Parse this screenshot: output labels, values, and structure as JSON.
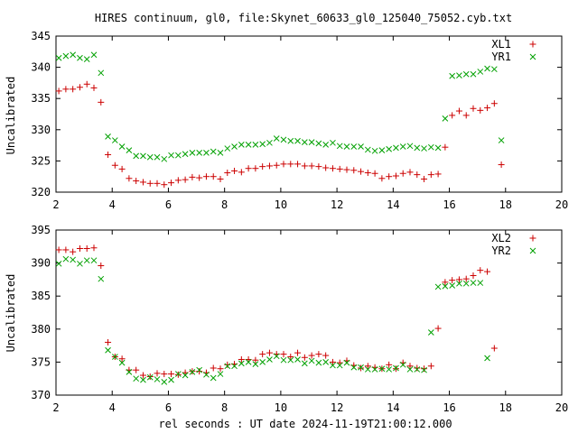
{
  "title": "HIRES continuum, gl0, file:Skynet_60633_gl0_125040_75052.cyb.txt",
  "xlabel": "rel seconds : UT date 2024-11-19T21:00:12.000",
  "colors": {
    "red": "#cc0000",
    "green": "#00a000"
  },
  "chart_data": [
    {
      "type": "scatter",
      "ylabel": "Uncalibrated",
      "xlim": [
        2,
        20
      ],
      "ylim": [
        320,
        345
      ],
      "xticks": [
        "2",
        "4",
        "6",
        "8",
        "10",
        "12",
        "14",
        "16",
        "18",
        "20"
      ],
      "yticks": [
        "320",
        "325",
        "330",
        "335",
        "340",
        "345"
      ],
      "legend_position": "top-right",
      "series": [
        {
          "name": "XL1",
          "marker": "plus",
          "color": "#cc0000",
          "x": [
            2.1,
            2.35,
            2.6,
            2.85,
            3.1,
            3.35,
            3.6,
            3.85,
            4.1,
            4.35,
            4.6,
            4.85,
            5.1,
            5.35,
            5.6,
            5.85,
            6.1,
            6.35,
            6.6,
            6.85,
            7.1,
            7.35,
            7.6,
            7.85,
            8.1,
            8.35,
            8.6,
            8.85,
            9.1,
            9.35,
            9.6,
            9.85,
            10.1,
            10.35,
            10.6,
            10.85,
            11.1,
            11.35,
            11.6,
            11.85,
            12.1,
            12.35,
            12.6,
            12.85,
            13.1,
            13.35,
            13.6,
            13.85,
            14.1,
            14.35,
            14.6,
            14.85,
            15.1,
            15.35,
            15.6,
            15.85,
            16.1,
            16.35,
            16.6,
            16.85,
            17.1,
            17.35,
            17.6,
            17.85,
            18.1
          ],
          "y": [
            336.2,
            336.5,
            336.5,
            336.8,
            337.3,
            336.7,
            334.4,
            326.0,
            324.3,
            323.7,
            322.2,
            321.8,
            321.6,
            321.4,
            321.4,
            321.2,
            321.5,
            321.9,
            322.0,
            322.4,
            322.3,
            322.5,
            322.5,
            322.1,
            323.1,
            323.4,
            323.2,
            323.8,
            323.8,
            324.1,
            324.2,
            324.3,
            324.5,
            324.5,
            324.5,
            324.2,
            324.2,
            324.1,
            323.9,
            323.8,
            323.7,
            323.6,
            323.5,
            323.3,
            323.1,
            323.0,
            322.2,
            322.5,
            322.6,
            323.0,
            323.2,
            322.8,
            322.1,
            322.8,
            322.9,
            327.2,
            332.3,
            333.0,
            332.3,
            333.4,
            333.1,
            333.5,
            334.2,
            324.4,
            null
          ],
          "y_note": ""
        },
        {
          "name": "YR1",
          "marker": "cross",
          "color": "#00a000",
          "x": [
            2.1,
            2.35,
            2.6,
            2.85,
            3.1,
            3.35,
            3.6,
            3.85,
            4.1,
            4.35,
            4.6,
            4.85,
            5.1,
            5.35,
            5.6,
            5.85,
            6.1,
            6.35,
            6.6,
            6.85,
            7.1,
            7.35,
            7.6,
            7.85,
            8.1,
            8.35,
            8.6,
            8.85,
            9.1,
            9.35,
            9.6,
            9.85,
            10.1,
            10.35,
            10.6,
            10.85,
            11.1,
            11.35,
            11.6,
            11.85,
            12.1,
            12.35,
            12.6,
            12.85,
            13.1,
            13.35,
            13.6,
            13.85,
            14.1,
            14.35,
            14.6,
            14.85,
            15.1,
            15.35,
            15.6,
            15.85,
            16.1,
            16.35,
            16.6,
            16.85,
            17.1,
            17.35,
            17.6,
            17.85,
            18.1
          ],
          "y": [
            341.5,
            341.8,
            342.0,
            341.5,
            341.3,
            342.0,
            339.1,
            328.9,
            328.3,
            327.3,
            326.7,
            325.8,
            325.8,
            325.6,
            325.6,
            325.3,
            325.9,
            325.9,
            326.1,
            326.3,
            326.3,
            326.3,
            326.5,
            326.3,
            327.0,
            327.3,
            327.6,
            327.6,
            327.6,
            327.7,
            327.9,
            328.6,
            328.4,
            328.2,
            328.2,
            328.0,
            328.0,
            327.8,
            327.6,
            327.9,
            327.4,
            327.3,
            327.3,
            327.3,
            326.8,
            326.6,
            326.7,
            326.9,
            327.1,
            327.3,
            327.4,
            327.1,
            327.0,
            327.2,
            327.1,
            331.8,
            338.6,
            338.7,
            338.9,
            338.9,
            339.3,
            339.8,
            339.7,
            328.3,
            null
          ],
          "y_note": ""
        }
      ]
    },
    {
      "type": "scatter",
      "ylabel": "Uncalibrated",
      "xlim": [
        2,
        20
      ],
      "ylim": [
        370,
        395
      ],
      "xticks": [
        "2",
        "4",
        "6",
        "8",
        "10",
        "12",
        "14",
        "16",
        "18",
        "20"
      ],
      "yticks": [
        "370",
        "375",
        "380",
        "385",
        "390",
        "395"
      ],
      "legend_position": "top-right",
      "series": [
        {
          "name": "XL2",
          "marker": "plus",
          "color": "#cc0000",
          "x": [
            2.1,
            2.35,
            2.6,
            2.85,
            3.1,
            3.35,
            3.6,
            3.85,
            4.1,
            4.35,
            4.6,
            4.85,
            5.1,
            5.35,
            5.6,
            5.85,
            6.1,
            6.35,
            6.6,
            6.85,
            7.1,
            7.35,
            7.6,
            7.85,
            8.1,
            8.35,
            8.6,
            8.85,
            9.1,
            9.35,
            9.6,
            9.85,
            10.1,
            10.35,
            10.6,
            10.85,
            11.1,
            11.35,
            11.6,
            11.85,
            12.1,
            12.35,
            12.6,
            12.85,
            13.1,
            13.35,
            13.6,
            13.85,
            14.1,
            14.35,
            14.6,
            14.85,
            15.1,
            15.35,
            15.6,
            15.85,
            16.1,
            16.35,
            16.6,
            16.85,
            17.1,
            17.35,
            17.6,
            17.85,
            18.1
          ],
          "y": [
            392.0,
            392.0,
            391.7,
            392.2,
            392.2,
            392.3,
            389.6,
            378.0,
            375.8,
            375.5,
            373.8,
            373.8,
            373.0,
            372.8,
            373.3,
            373.2,
            373.2,
            373.1,
            373.4,
            373.6,
            373.6,
            373.4,
            374.1,
            374.0,
            374.6,
            374.7,
            375.4,
            375.4,
            375.3,
            376.2,
            376.4,
            376.2,
            376.2,
            375.8,
            376.4,
            375.7,
            376.0,
            376.2,
            376.0,
            375.0,
            374.9,
            375.2,
            374.5,
            374.1,
            374.4,
            374.2,
            374.0,
            374.6,
            374.0,
            374.9,
            374.4,
            374.1,
            374.0,
            374.4,
            380.1,
            387.1,
            387.4,
            387.5,
            387.6,
            388.1,
            388.9,
            388.7,
            377.1,
            null,
            null
          ],
          "y_note": ""
        },
        {
          "name": "YR2",
          "marker": "cross",
          "color": "#00a000",
          "x": [
            2.1,
            2.35,
            2.6,
            2.85,
            3.1,
            3.35,
            3.6,
            3.85,
            4.1,
            4.35,
            4.6,
            4.85,
            5.1,
            5.35,
            5.6,
            5.85,
            6.1,
            6.35,
            6.6,
            6.85,
            7.1,
            7.35,
            7.6,
            7.85,
            8.1,
            8.35,
            8.6,
            8.85,
            9.1,
            9.35,
            9.6,
            9.85,
            10.1,
            10.35,
            10.6,
            10.85,
            11.1,
            11.35,
            11.6,
            11.85,
            12.1,
            12.35,
            12.6,
            12.85,
            13.1,
            13.35,
            13.6,
            13.85,
            14.1,
            14.35,
            14.6,
            14.85,
            15.1,
            15.35,
            15.6,
            15.85,
            16.1,
            16.35,
            16.6,
            16.85,
            17.1,
            17.35,
            17.6,
            17.85,
            18.1
          ],
          "y": [
            389.9,
            390.6,
            390.5,
            389.9,
            390.4,
            390.4,
            387.6,
            376.8,
            375.8,
            374.9,
            373.5,
            372.5,
            372.3,
            372.7,
            372.4,
            372.0,
            372.3,
            373.2,
            373.0,
            373.5,
            373.8,
            373.1,
            372.6,
            373.2,
            374.4,
            374.4,
            374.8,
            375.0,
            374.7,
            375.0,
            375.4,
            375.9,
            375.3,
            375.3,
            375.4,
            374.8,
            375.2,
            374.9,
            375.0,
            374.5,
            374.5,
            374.9,
            374.2,
            374.2,
            373.9,
            373.9,
            374.0,
            373.9,
            374.1,
            374.6,
            373.9,
            373.9,
            373.8,
            379.5,
            386.4,
            386.5,
            386.6,
            386.9,
            386.9,
            387.0,
            387.0,
            375.6,
            null,
            null,
            null
          ],
          "y_note": ""
        }
      ]
    }
  ]
}
